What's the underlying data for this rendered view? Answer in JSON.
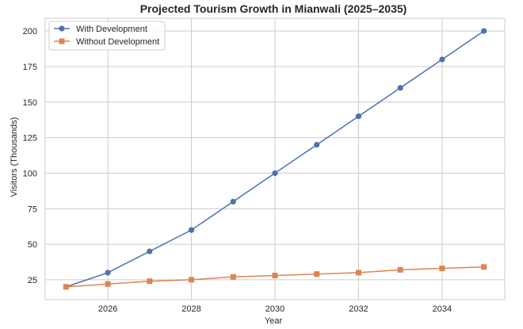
{
  "chart_data": {
    "type": "line",
    "title": "Projected Tourism Growth in Mianwali (2025–2035)",
    "xlabel": "Year",
    "ylabel": "Visitors (Thousands)",
    "x": [
      2025,
      2026,
      2027,
      2028,
      2029,
      2030,
      2031,
      2032,
      2033,
      2034,
      2035
    ],
    "xlim": [
      2024.5,
      2035.5
    ],
    "ylim": [
      11,
      209
    ],
    "x_ticks": [
      2026,
      2028,
      2030,
      2032,
      2034
    ],
    "y_ticks": [
      25,
      50,
      75,
      100,
      125,
      150,
      175,
      200
    ],
    "grid": true,
    "legend_position": "top-left",
    "series": [
      {
        "name": "With Development",
        "color": "#4c72b0",
        "marker": "circle",
        "values": [
          20,
          30,
          45,
          60,
          80,
          100,
          120,
          140,
          160,
          180,
          200
        ]
      },
      {
        "name": "Without Development",
        "color": "#dd8452",
        "marker": "square",
        "values": [
          20,
          22,
          24,
          25,
          27,
          28,
          29,
          30,
          32,
          33,
          34
        ]
      }
    ]
  }
}
